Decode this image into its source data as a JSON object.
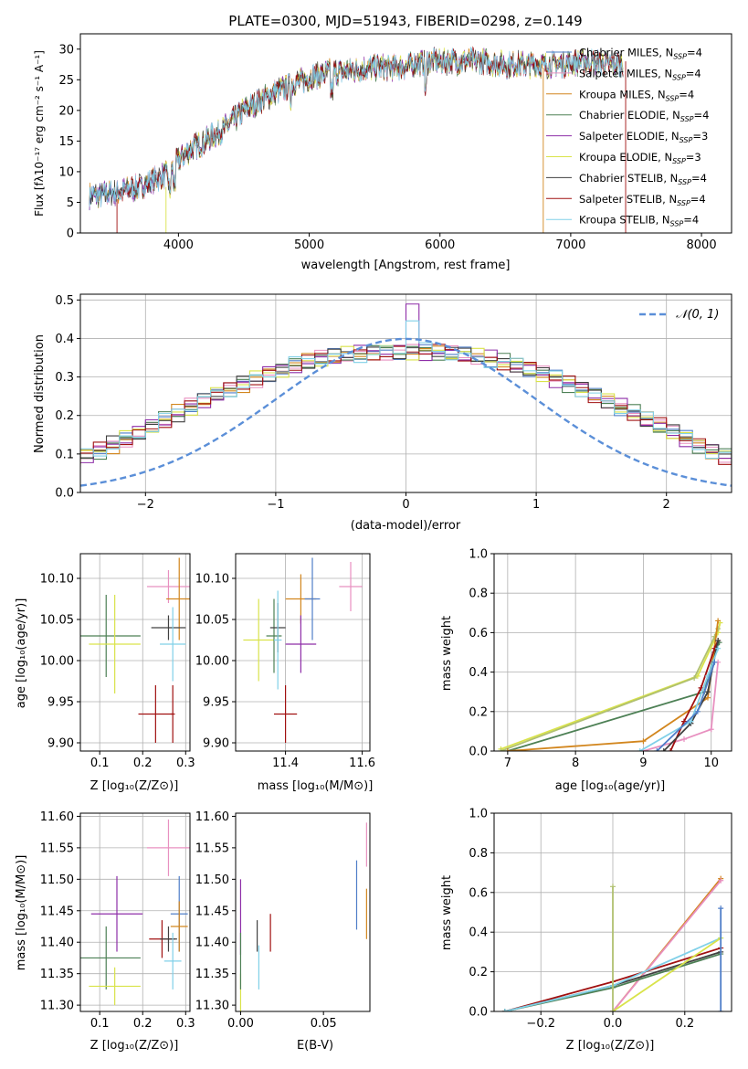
{
  "chart_data": [
    {
      "id": "spectrum",
      "type": "line",
      "title": "PLATE=0300, MJD=51943, FIBERID=0298, z=0.149",
      "xlabel": "wavelength [Angstrom, rest frame]",
      "ylabel": "Flux [fλ10⁻¹⁷ erg cm⁻² s⁻¹ A⁻¹]",
      "xlim": [
        3250,
        8230
      ],
      "ylim": [
        0,
        32.5
      ],
      "xticks": [
        4000,
        5000,
        6000,
        7000,
        8000
      ],
      "yticks": [
        0,
        5,
        10,
        15,
        20,
        25,
        30
      ],
      "legend_position": "upper right",
      "series": [
        {
          "name": "Chabrier MILES, N",
          "sub": "SSP",
          "tail": "=4",
          "color": "#4f7ec8"
        },
        {
          "name": "Salpeter MILES, N",
          "sub": "SSP",
          "tail": "=4",
          "color": "#e890c0"
        },
        {
          "name": "Kroupa MILES, N",
          "sub": "SSP",
          "tail": "=4",
          "color": "#d2861e"
        },
        {
          "name": "Chabrier ELODIE, N",
          "sub": "SSP",
          "tail": "=4",
          "color": "#4d8055"
        },
        {
          "name": "Salpeter ELODIE, N",
          "sub": "SSP",
          "tail": "=3",
          "color": "#8e2ea8"
        },
        {
          "name": "Kroupa ELODIE, N",
          "sub": "SSP",
          "tail": "=3",
          "color": "#d9e34a"
        },
        {
          "name": "Chabrier STELIB, N",
          "sub": "SSP",
          "tail": "=4",
          "color": "#404040"
        },
        {
          "name": "Salpeter STELIB, N",
          "sub": "SSP",
          "tail": "=4",
          "color": "#a01010"
        },
        {
          "name": "Kroupa STELIB, N",
          "sub": "SSP",
          "tail": "=4",
          "color": "#80d0e8"
        }
      ],
      "continuum_nodes": {
        "x": [
          3320,
          3500,
          3700,
          3900,
          4050,
          4200,
          4350,
          4500,
          4700,
          4900,
          5100,
          5300,
          5500,
          5700,
          5900,
          6100,
          6300,
          6500,
          6700,
          6900,
          7100,
          7300,
          7400
        ],
        "y": [
          6,
          6.5,
          7.5,
          9.5,
          13,
          15,
          17,
          20,
          22.5,
          24.5,
          26,
          26.5,
          27,
          27,
          28,
          28,
          28,
          27.5,
          27.5,
          27.5,
          28,
          27.5,
          27.5
        ]
      }
    },
    {
      "id": "residuals",
      "type": "step",
      "xlabel": "(data-model)/error",
      "ylabel": "Normed distribution",
      "xlim": [
        -2.5,
        2.5
      ],
      "ylim": [
        0,
        0.515
      ],
      "xticks": [
        -2,
        -1,
        0,
        1,
        2
      ],
      "yticks": [
        0.0,
        0.1,
        0.2,
        0.3,
        0.4,
        0.5
      ],
      "grid": true,
      "legend": "𝒩(0, 1)",
      "bin_width": 0.1,
      "mean_hist": [
        0.032,
        0.034,
        0.038,
        0.045,
        0.053,
        0.062,
        0.072,
        0.083,
        0.096,
        0.109,
        0.124,
        0.139,
        0.155,
        0.172,
        0.188,
        0.205,
        0.222,
        0.238,
        0.254,
        0.269,
        0.283,
        0.296,
        0.309,
        0.32,
        0.33,
        0.339,
        0.346,
        0.352,
        0.357,
        0.361,
        0.364,
        0.366,
        0.367,
        0.367,
        0.366,
        0.364,
        0.361,
        0.357,
        0.352,
        0.346,
        0.339,
        0.33,
        0.32,
        0.309,
        0.296,
        0.283,
        0.269,
        0.254,
        0.238,
        0.222,
        0.205,
        0.188,
        0.172,
        0.155,
        0.139,
        0.124,
        0.109,
        0.096,
        0.083,
        0.072,
        0.062,
        0.053,
        0.045,
        0.038,
        0.034,
        0.032
      ]
    },
    {
      "id": "age_vs_Z",
      "type": "errorbar",
      "xlabel": "Z [log₁₀(Z/Z⊙)]",
      "ylabel": "age  [log₁₀(age/yr)]",
      "xlim": [
        0.055,
        0.31
      ],
      "ylim": [
        9.89,
        10.13
      ],
      "xticks": [
        0.1,
        0.2,
        0.3
      ],
      "yticks": [
        9.9,
        9.95,
        10.0,
        10.05,
        10.1
      ],
      "grid": true,
      "points": [
        {
          "x": 0.115,
          "y": 10.03,
          "xerr": 0.08,
          "yerr": 0.05,
          "color": "#4d8055"
        },
        {
          "x": 0.135,
          "y": 10.02,
          "xerr": 0.06,
          "yerr": 0.06,
          "color": "#d9e34a"
        },
        {
          "x": 0.26,
          "y": 10.09,
          "xerr": 0.05,
          "yerr": 0.02,
          "color": "#e890c0"
        },
        {
          "x": 0.285,
          "y": 10.075,
          "xerr": 0.03,
          "yerr": 0.05,
          "color": "#d2861e"
        },
        {
          "x": 0.26,
          "y": 10.04,
          "xerr": 0.04,
          "yerr": 0.015,
          "color": "#404040"
        },
        {
          "x": 0.27,
          "y": 10.02,
          "xerr": 0.03,
          "yerr": 0.045,
          "color": "#80d0e8"
        },
        {
          "x": 0.23,
          "y": 9.935,
          "xerr": 0.04,
          "yerr": 0.035,
          "color": "#a01010"
        },
        {
          "x": 0.27,
          "y": 9.935,
          "xerr": 0.005,
          "yerr": 0.035,
          "color": "#a01010"
        }
      ]
    },
    {
      "id": "age_vs_mass",
      "type": "errorbar",
      "xlabel": "mass [log₁₀(M/M⊙)]",
      "ylabel": "",
      "xlim": [
        11.27,
        11.62
      ],
      "ylim": [
        9.89,
        10.13
      ],
      "xticks": [
        11.4,
        11.6
      ],
      "yticks": [
        9.9,
        9.95,
        10.0,
        10.05,
        10.1
      ],
      "grid": true,
      "points": [
        {
          "x": 11.33,
          "y": 10.025,
          "xerr": 0.04,
          "yerr": 0.05,
          "color": "#d9e34a"
        },
        {
          "x": 11.37,
          "y": 10.03,
          "xerr": 0.02,
          "yerr": 0.045,
          "color": "#4d8055"
        },
        {
          "x": 11.38,
          "y": 10.04,
          "xerr": 0.02,
          "yerr": 0.03,
          "color": "#404040"
        },
        {
          "x": 11.38,
          "y": 10.025,
          "xerr": 0.01,
          "yerr": 0.06,
          "color": "#80d0e8"
        },
        {
          "x": 11.44,
          "y": 10.075,
          "xerr": 0.04,
          "yerr": 0.03,
          "color": "#d2861e"
        },
        {
          "x": 11.47,
          "y": 10.075,
          "xerr": 0.02,
          "yerr": 0.05,
          "color": "#4f7ec8"
        },
        {
          "x": 11.44,
          "y": 10.02,
          "xerr": 0.04,
          "yerr": 0.035,
          "color": "#8e2ea8"
        },
        {
          "x": 11.4,
          "y": 9.935,
          "xerr": 0.03,
          "yerr": 0.035,
          "color": "#a01010"
        },
        {
          "x": 11.57,
          "y": 10.09,
          "xerr": 0.03,
          "yerr": 0.03,
          "color": "#e890c0"
        }
      ]
    },
    {
      "id": "mass_weight_vs_age",
      "type": "line",
      "xlabel": "age  [log₁₀(age/yr)]",
      "ylabel": "mass weight",
      "xlim": [
        6.8,
        10.3
      ],
      "ylim": [
        0,
        1.0
      ],
      "xticks": [
        7,
        8,
        9,
        10
      ],
      "yticks": [
        0.0,
        0.2,
        0.4,
        0.6,
        0.8,
        1.0
      ],
      "grid": true,
      "series": [
        {
          "color": "#d9e34a",
          "x": [
            6.9,
            9.8,
            10.1,
            10.13
          ],
          "y": [
            0.01,
            0.38,
            0.6,
            0.65
          ]
        },
        {
          "color": "#b0c070",
          "x": [
            6.9,
            9.75,
            10.05,
            10.1
          ],
          "y": [
            0.0,
            0.37,
            0.58,
            0.62
          ]
        },
        {
          "color": "#4d8055",
          "x": [
            7.0,
            9.9,
            10.05,
            10.12
          ],
          "y": [
            0.0,
            0.3,
            0.5,
            0.55
          ]
        },
        {
          "color": "#d2861e",
          "x": [
            7.0,
            9.0,
            9.95,
            10.1
          ],
          "y": [
            0.0,
            0.05,
            0.27,
            0.66
          ]
        },
        {
          "color": "#e890c0",
          "x": [
            9.0,
            9.6,
            10.0,
            10.1
          ],
          "y": [
            0.0,
            0.06,
            0.11,
            0.45
          ]
        },
        {
          "color": "#a01010",
          "x": [
            9.4,
            9.6,
            9.85,
            10.05,
            10.1
          ],
          "y": [
            0.0,
            0.15,
            0.32,
            0.52,
            0.56
          ]
        },
        {
          "color": "#404040",
          "x": [
            9.3,
            9.7,
            9.95,
            10.1
          ],
          "y": [
            0.0,
            0.14,
            0.3,
            0.56
          ]
        },
        {
          "color": "#80d0e8",
          "x": [
            8.95,
            9.7,
            9.95,
            10.1
          ],
          "y": [
            0.0,
            0.15,
            0.38,
            0.52
          ]
        },
        {
          "color": "#4f7ec8",
          "x": [
            9.2,
            9.8,
            10.05
          ],
          "y": [
            0.0,
            0.2,
            0.45
          ]
        }
      ]
    },
    {
      "id": "mass_vs_Z",
      "type": "errorbar",
      "xlabel": "Z [log₁₀(Z/Z⊙)]",
      "ylabel": "mass [log₁₀(M/M⊙)]",
      "xlim": [
        0.055,
        0.31
      ],
      "ylim": [
        11.29,
        11.605
      ],
      "xticks": [
        0.1,
        0.2,
        0.3
      ],
      "yticks": [
        11.3,
        11.35,
        11.4,
        11.45,
        11.5,
        11.55,
        11.6
      ],
      "grid": true,
      "points": [
        {
          "x": 0.14,
          "y": 11.445,
          "xerr": 0.06,
          "yerr": 0.06,
          "color": "#8e2ea8"
        },
        {
          "x": 0.115,
          "y": 11.375,
          "xerr": 0.08,
          "yerr": 0.05,
          "color": "#4d8055"
        },
        {
          "x": 0.135,
          "y": 11.33,
          "xerr": 0.06,
          "yerr": 0.03,
          "color": "#d9e34a"
        },
        {
          "x": 0.26,
          "y": 11.55,
          "xerr": 0.05,
          "yerr": 0.045,
          "color": "#e890c0"
        },
        {
          "x": 0.285,
          "y": 11.445,
          "xerr": 0.02,
          "yerr": 0.06,
          "color": "#4f7ec8"
        },
        {
          "x": 0.285,
          "y": 11.425,
          "xerr": 0.02,
          "yerr": 0.04,
          "color": "#d2861e"
        },
        {
          "x": 0.245,
          "y": 11.405,
          "xerr": 0.03,
          "yerr": 0.03,
          "color": "#a01010"
        },
        {
          "x": 0.26,
          "y": 11.405,
          "xerr": 0.02,
          "yerr": 0.02,
          "color": "#404040"
        },
        {
          "x": 0.27,
          "y": 11.37,
          "xerr": 0.02,
          "yerr": 0.045,
          "color": "#80d0e8"
        }
      ]
    },
    {
      "id": "mass_vs_EBV",
      "type": "errorbar",
      "xlabel": "E(B-V)",
      "ylabel": "",
      "xlim": [
        -0.003,
        0.078
      ],
      "ylim": [
        11.29,
        11.605
      ],
      "xticks": [
        0.0,
        0.05
      ],
      "yticks": [
        11.3,
        11.35,
        11.4,
        11.45,
        11.5,
        11.55,
        11.6
      ],
      "grid": false,
      "points": [
        {
          "x": 0.0,
          "y": 11.44,
          "xerr": 0.0,
          "yerr": 0.06,
          "color": "#8e2ea8"
        },
        {
          "x": 0.0,
          "y": 11.32,
          "xerr": 0.0,
          "yerr": 0.03,
          "color": "#d9e34a"
        },
        {
          "x": 0.0,
          "y": 11.37,
          "xerr": 0.0,
          "yerr": 0.045,
          "color": "#4d8055"
        },
        {
          "x": 0.01,
          "y": 11.41,
          "xerr": 0.0,
          "yerr": 0.025,
          "color": "#404040"
        },
        {
          "x": 0.011,
          "y": 11.36,
          "xerr": 0.0,
          "yerr": 0.035,
          "color": "#80d0e8"
        },
        {
          "x": 0.018,
          "y": 11.415,
          "xerr": 0.0,
          "yerr": 0.03,
          "color": "#a01010"
        },
        {
          "x": 0.07,
          "y": 11.475,
          "xerr": 0.0,
          "yerr": 0.055,
          "color": "#4f7ec8"
        },
        {
          "x": 0.076,
          "y": 11.555,
          "xerr": 0.0,
          "yerr": 0.035,
          "color": "#e890c0"
        },
        {
          "x": 0.076,
          "y": 11.445,
          "xerr": 0.0,
          "yerr": 0.04,
          "color": "#d2861e"
        }
      ]
    },
    {
      "id": "mass_weight_vs_Z",
      "type": "line",
      "xlabel": "Z [log₁₀(Z/Z⊙)]",
      "ylabel": "mass weight",
      "xlim": [
        -0.33,
        0.33
      ],
      "ylim": [
        0,
        1.0
      ],
      "xticks": [
        -0.2,
        0.0,
        0.2
      ],
      "yticks": [
        0.0,
        0.2,
        0.4,
        0.6,
        0.8,
        1.0
      ],
      "grid": true,
      "series": [
        {
          "color": "#d2861e",
          "x": [
            0.0,
            0.3
          ],
          "y": [
            0.0,
            0.67
          ]
        },
        {
          "color": "#e890c0",
          "x": [
            0.0,
            0.3
          ],
          "y": [
            0.0,
            0.66
          ]
        },
        {
          "color": "#a01010",
          "x": [
            -0.3,
            0.0,
            0.3
          ],
          "y": [
            0.0,
            0.15,
            0.32
          ]
        },
        {
          "color": "#404040",
          "x": [
            -0.3,
            0.0,
            0.3
          ],
          "y": [
            0.0,
            0.13,
            0.3
          ]
        },
        {
          "color": "#4d8055",
          "x": [
            -0.3,
            0.0,
            0.3
          ],
          "y": [
            0.0,
            0.12,
            0.29
          ]
        },
        {
          "color": "#80d0e8",
          "x": [
            -0.3,
            0.0,
            0.3
          ],
          "y": [
            0.0,
            0.13,
            0.37
          ]
        },
        {
          "color": "#d9e34a",
          "x": [
            0.0,
            0.3
          ],
          "y": [
            0.0,
            0.37
          ]
        },
        {
          "color": "#b0c070",
          "x": [
            0.0,
            0.0
          ],
          "y": [
            0.0,
            0.63
          ]
        },
        {
          "color": "#4f7ec8",
          "x": [
            0.3,
            0.3
          ],
          "y": [
            0.0,
            0.52
          ]
        }
      ]
    }
  ]
}
